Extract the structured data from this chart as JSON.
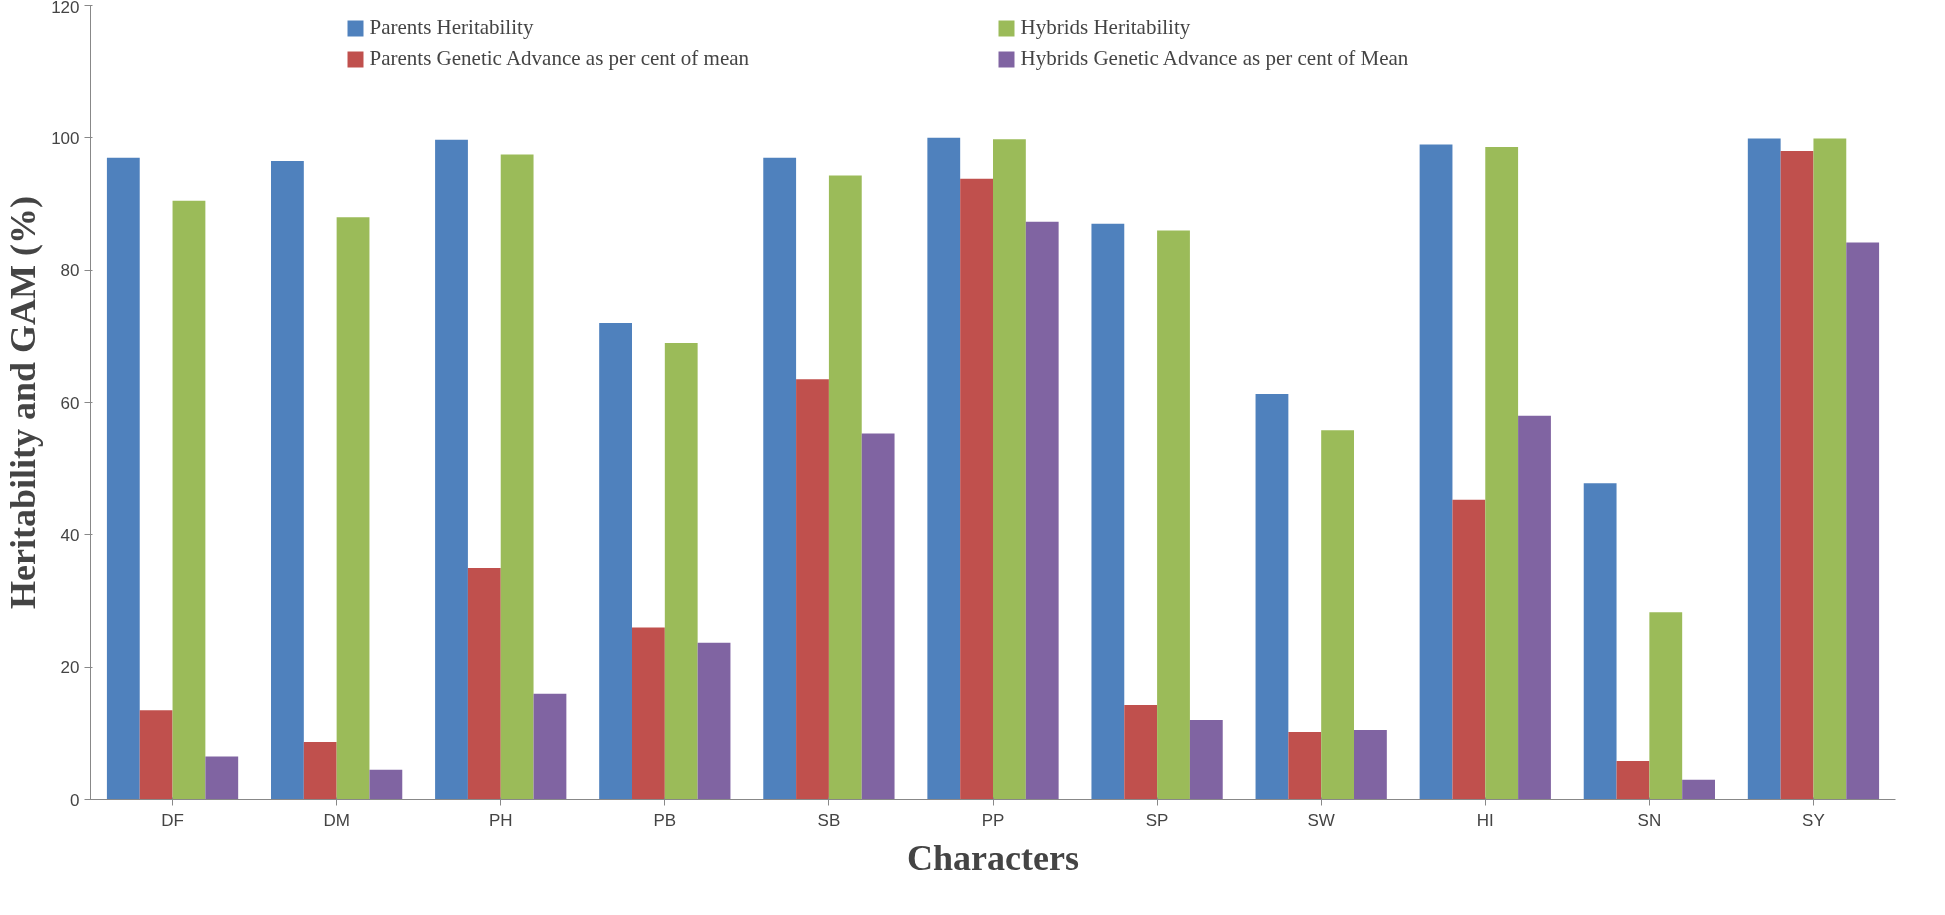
{
  "chart_data": {
    "type": "bar",
    "xlabel": "Characters",
    "ylabel": "Heritability and GAM (%)",
    "categories": [
      "DF",
      "DM",
      "PH",
      "PB",
      "SB",
      "PP",
      "SP",
      "SW",
      "HI",
      "SN",
      "SY"
    ],
    "series": [
      {
        "name": "Parents Heritability",
        "color": "#4f81bd",
        "values": [
          97,
          96.5,
          99.7,
          72,
          97,
          100,
          87,
          61.3,
          99,
          47.8,
          99.9
        ]
      },
      {
        "name": "Parents Genetic Advance as per cent of mean",
        "color": "#c0504d",
        "values": [
          13.5,
          8.7,
          35,
          26,
          63.5,
          93.8,
          14.3,
          10.2,
          45.3,
          5.8,
          98
        ]
      },
      {
        "name": "Hybrids Heritability",
        "color": "#9bbb59",
        "values": [
          90.5,
          88,
          97.5,
          69,
          94.3,
          99.8,
          86,
          55.8,
          98.6,
          28.3,
          99.9
        ]
      },
      {
        "name": "Hybrids Genetic Advance as per cent of Mean",
        "color": "#8064a2",
        "values": [
          6.5,
          4.5,
          16,
          23.7,
          55.3,
          87.3,
          12,
          10.5,
          58,
          3,
          84.2
        ]
      }
    ],
    "ylim": [
      0,
      120
    ],
    "yticks": [
      0,
      20,
      40,
      60,
      80,
      100,
      120
    ],
    "grid": false,
    "legend": "top"
  }
}
